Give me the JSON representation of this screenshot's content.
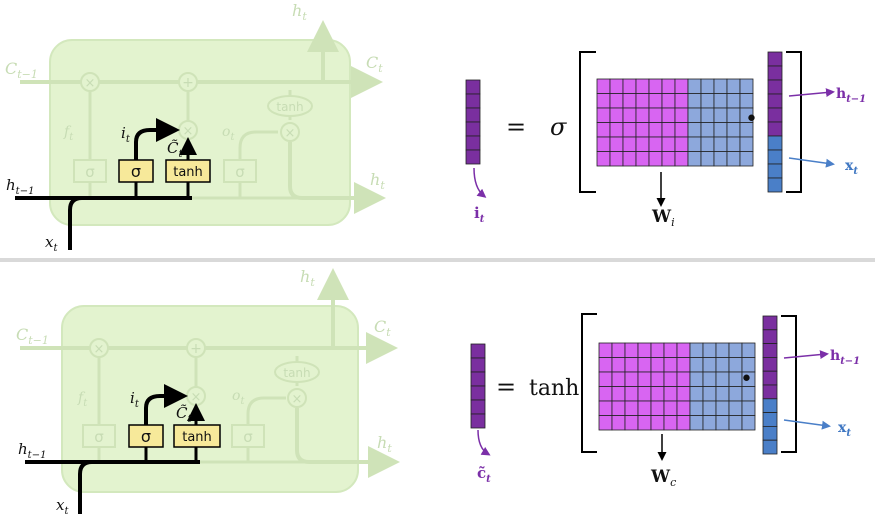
{
  "colors": {
    "cell_fill": "#e3f3cf",
    "cell_stroke": "#cfe3b8",
    "faint_line": "#cfe3b8",
    "gate_fill": "#f7e99a",
    "dark_line": "#000000",
    "purple": "#7b2fa8",
    "purple_cell": "#7a2f9f",
    "magenta_cell": "#d865f2",
    "blue_cell": "#8da8dc",
    "blue_vec": "#4a7fc8"
  },
  "top": {
    "labels": {
      "h_t_top": "h",
      "h_t_top_sub": "t",
      "c_prev": "C",
      "c_prev_sub": "t−1",
      "c_t": "C",
      "c_t_sub": "t",
      "f_t": "f",
      "f_t_sub": "t",
      "i_t": "i",
      "i_t_sub": "t",
      "c_tilde": "C̃",
      "c_tilde_sub": "t",
      "o_t": "o",
      "o_t_sub": "t",
      "h_t_right": "h",
      "h_t_right_sub": "t",
      "h_prev": "h",
      "h_prev_sub": "t−1",
      "x_t": "x",
      "x_t_sub": "t",
      "tanh_oval": "tanh",
      "sigma_faint": "σ",
      "sigma_gate": "σ",
      "tanh_gate": "tanh",
      "sigma_faint2": "σ",
      "times": "×",
      "plus": "+"
    },
    "equation": {
      "equals": "=",
      "func": "σ",
      "dot": "•",
      "out_label": "i",
      "out_sub": "t",
      "w_label": "W",
      "w_sub": "i",
      "h_label": "h",
      "h_sub": "t−1",
      "x_label": "x",
      "x_sub": "t"
    }
  },
  "bottom": {
    "labels": {
      "h_t_top": "h",
      "h_t_top_sub": "t",
      "c_prev": "C",
      "c_prev_sub": "t−1",
      "c_t": "C",
      "c_t_sub": "t",
      "f_t": "f",
      "f_t_sub": "t",
      "i_t": "i",
      "i_t_sub": "t",
      "c_tilde": "C̃",
      "c_tilde_sub": "t",
      "o_t": "o",
      "o_t_sub": "t",
      "h_t_right": "h",
      "h_t_right_sub": "t",
      "h_prev": "h",
      "h_prev_sub": "t−1",
      "x_t": "x",
      "x_t_sub": "t",
      "tanh_oval": "tanh",
      "sigma_faint": "σ",
      "sigma_gate": "σ",
      "tanh_gate": "tanh",
      "sigma_faint2": "σ",
      "times": "×",
      "plus": "+"
    },
    "equation": {
      "equals": "=",
      "func": "tanh",
      "dot": "•",
      "out_label": "c̃",
      "out_sub": "t",
      "w_label": "W",
      "w_sub": "c",
      "h_label": "h",
      "h_sub": "t−1",
      "x_label": "x",
      "x_sub": "t"
    }
  }
}
